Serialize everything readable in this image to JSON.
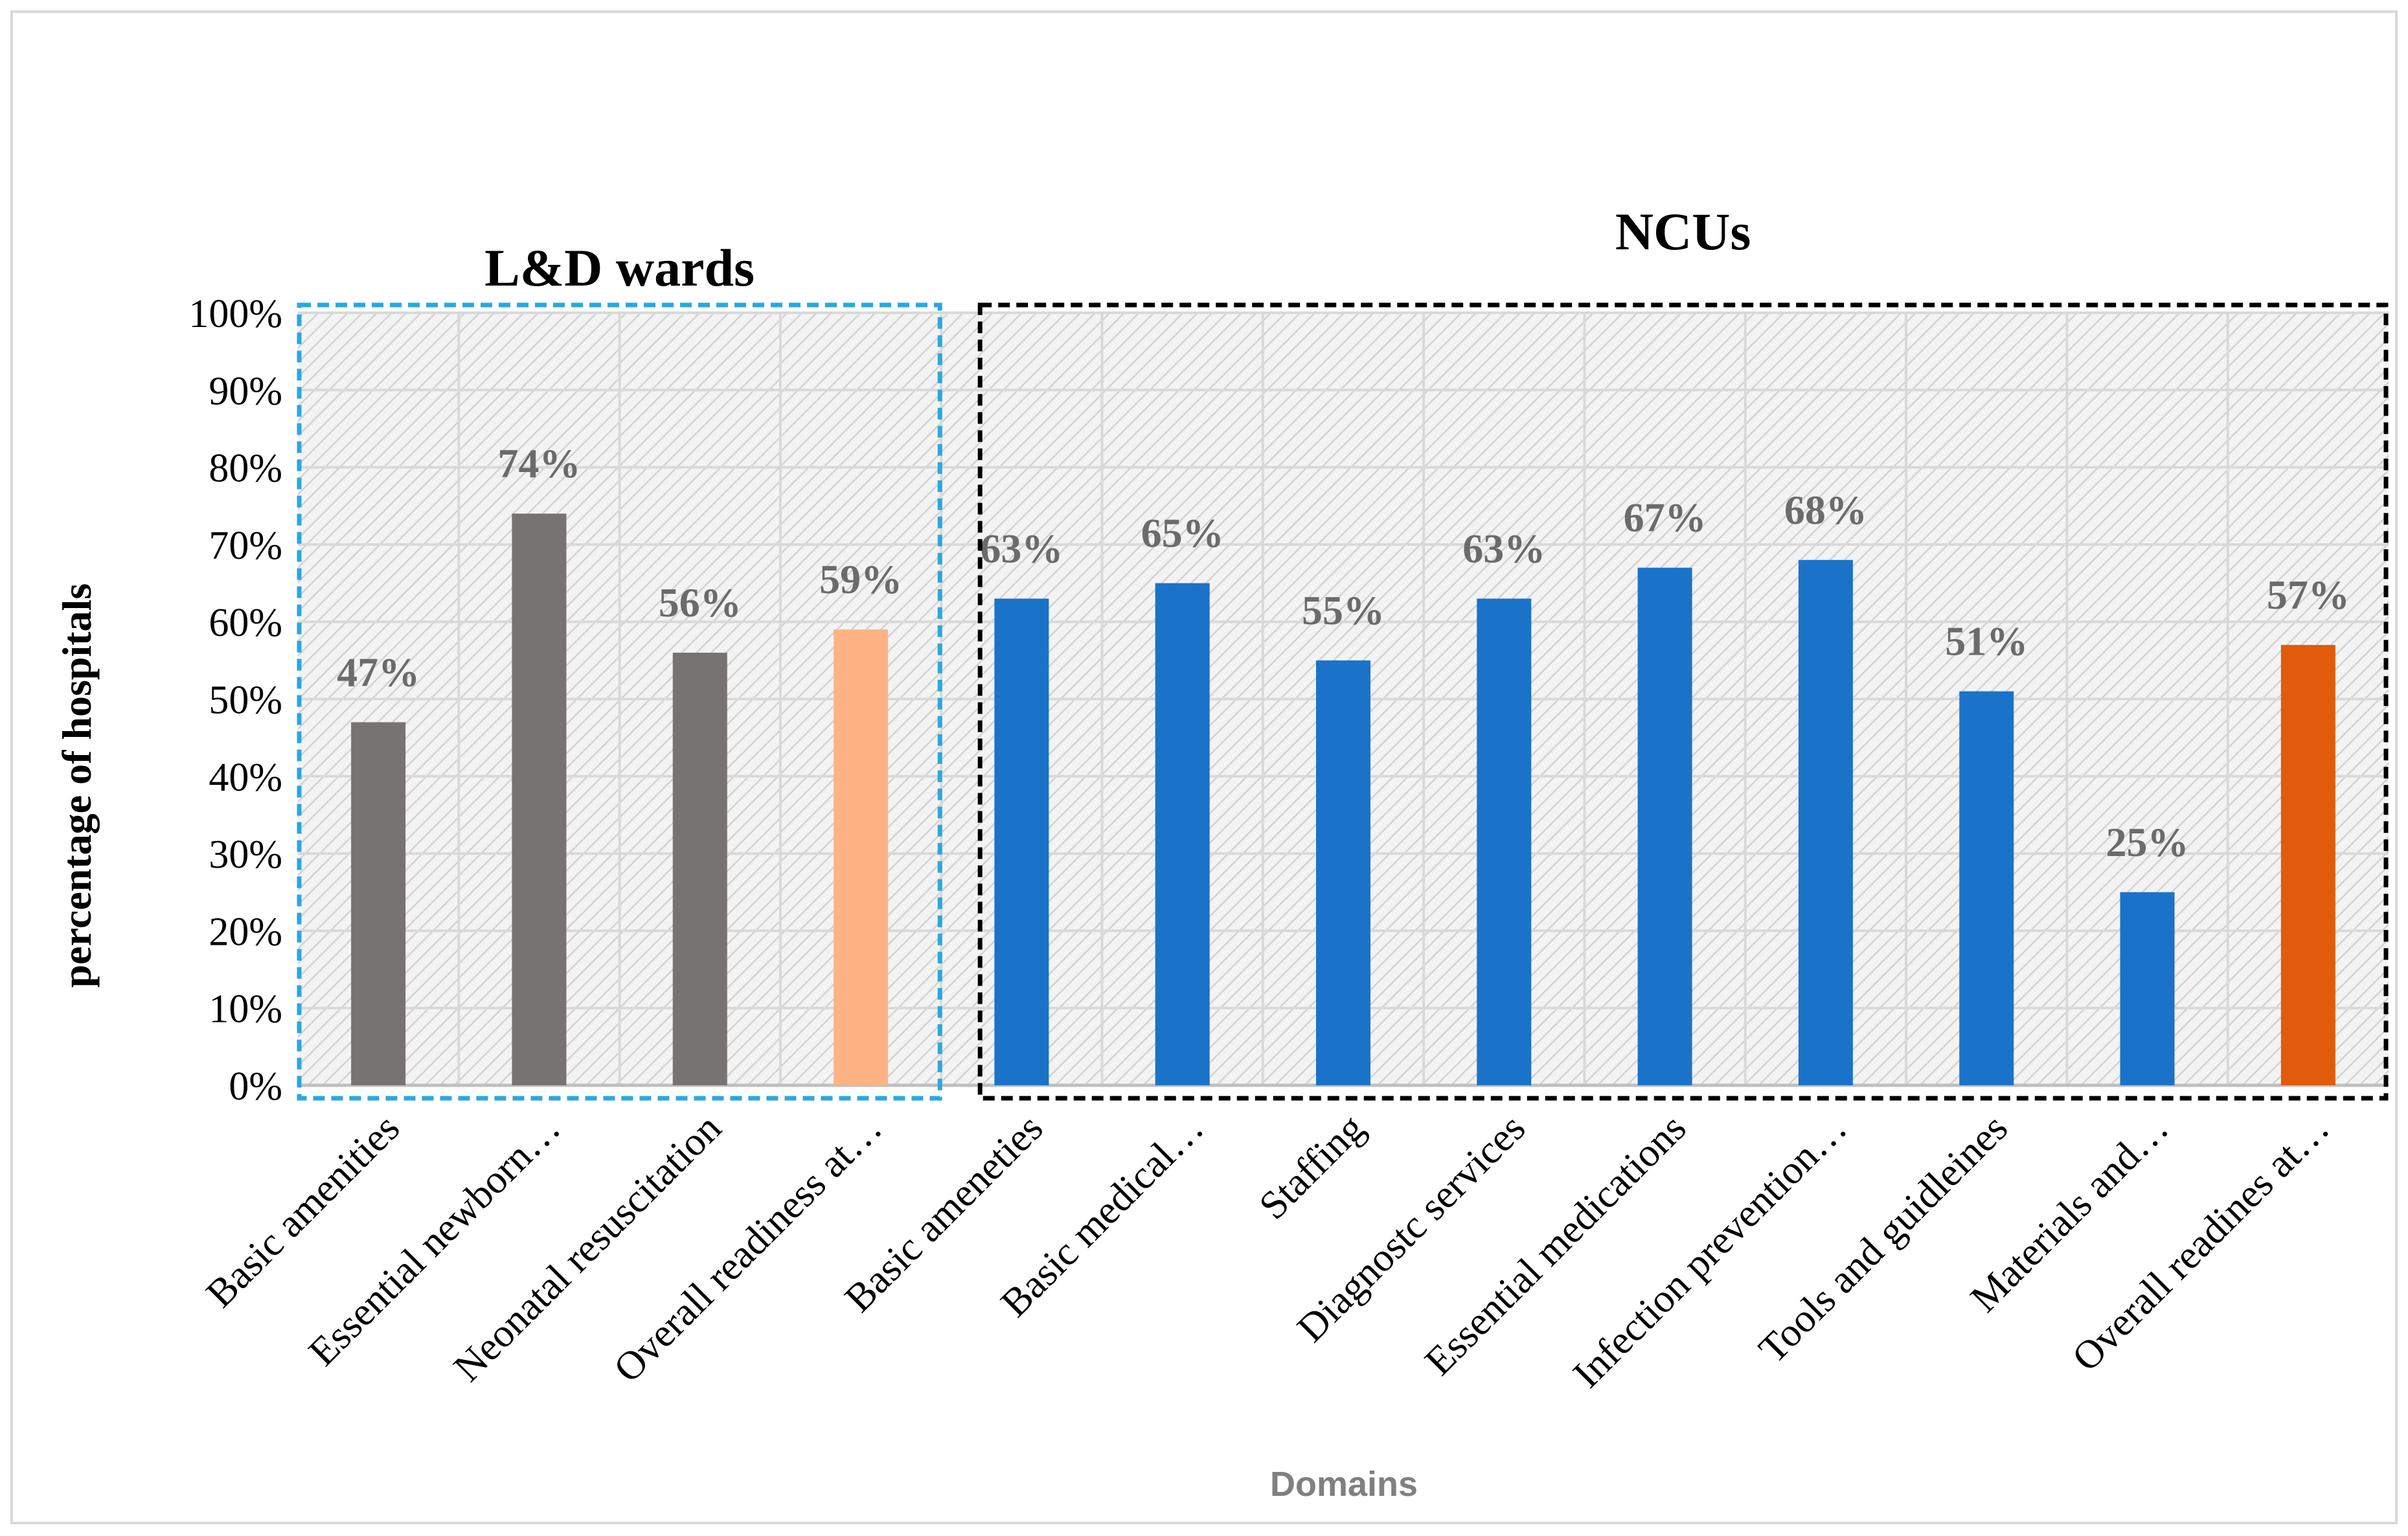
{
  "chart_data": {
    "type": "bar",
    "title": "",
    "xlabel": "Domains",
    "ylabel": "percentage of hospitals",
    "ylim": [
      0,
      100
    ],
    "yticks": [
      "0%",
      "10%",
      "20%",
      "30%",
      "40%",
      "50%",
      "60%",
      "70%",
      "80%",
      "90%",
      "100%"
    ],
    "grid": true,
    "groups": [
      {
        "name": "L&D wards",
        "border_color": "#29a8e0",
        "category_count": 4
      },
      {
        "name": "NCUs",
        "border_color": "#000000",
        "category_count": 9
      }
    ],
    "categories": [
      "Basic amenities",
      "Essential newborn…",
      "Neonatal resuscitation",
      "Overall readiness at…",
      "Basic ameneties",
      "Basic medical…",
      "Staffing",
      "Diagnostc services",
      "Essential medications",
      "Infection prevention…",
      "Tools and guidleines",
      "Materials and…",
      "Overall readines at…"
    ],
    "values": [
      47,
      74,
      56,
      59,
      63,
      65,
      55,
      63,
      67,
      68,
      51,
      25,
      57
    ],
    "data_labels": [
      "47%",
      "74%",
      "56%",
      "59%",
      "63%",
      "65%",
      "55%",
      "63%",
      "67%",
      "68%",
      "51%",
      "25%",
      "57%"
    ],
    "colors": [
      "#787373",
      "#787373",
      "#787373",
      "#ffb385",
      "#1a73c9",
      "#1a73c9",
      "#1a73c9",
      "#1a73c9",
      "#1a73c9",
      "#1a73c9",
      "#1a73c9",
      "#1a73c9",
      "#e05c0c"
    ]
  }
}
